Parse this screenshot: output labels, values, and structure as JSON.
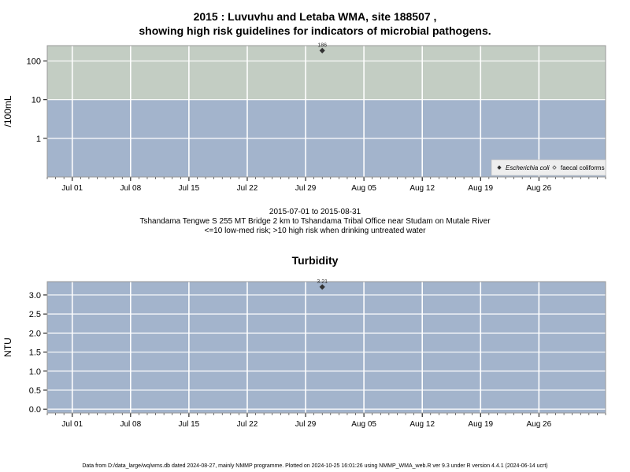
{
  "chart_data": [
    {
      "type": "scatter",
      "title": "2015 : Luvuvhu and Letaba WMA, site 188507 ,",
      "subtitle": "showing high risk guidelines for indicators of microbial pathogens.",
      "ylabel": "/100mL",
      "yscale": "log",
      "yticks": [
        "1",
        "10",
        "100"
      ],
      "xlim": [
        "2015-06-28",
        "2015-09-03"
      ],
      "xticks": [
        "Jul 01",
        "Jul 08",
        "Jul 15",
        "Jul 22",
        "Jul 29",
        "Aug 05",
        "Aug 12",
        "Aug 19",
        "Aug 26"
      ],
      "ylim": [
        0.1,
        250
      ],
      "bands": [
        {
          "from": 0.1,
          "to": 10,
          "color": "#a3b4cc"
        },
        {
          "from": 10,
          "to": 250,
          "color": "#c3cdc3"
        }
      ],
      "series": [
        {
          "name": "Escherichia coli",
          "marker": "filled-diamond",
          "points": [
            {
              "x": "2015-07-31",
              "y": 186,
              "label": "186"
            }
          ]
        },
        {
          "name": "faecal coliforms",
          "marker": "open-diamond",
          "points": []
        }
      ],
      "legend_position": "bottom-right",
      "grid": true
    },
    {
      "type": "scatter",
      "title": "Turbidity",
      "ylabel": "NTU",
      "yticks": [
        "0.0",
        "0.5",
        "1.0",
        "1.5",
        "2.0",
        "2.5",
        "3.0"
      ],
      "xlim": [
        "2015-06-28",
        "2015-09-03"
      ],
      "ylim": [
        -0.1,
        3.35
      ],
      "xticks": [
        "Jul 01",
        "Jul 08",
        "Jul 15",
        "Jul 22",
        "Jul 29",
        "Aug 05",
        "Aug 12",
        "Aug 19",
        "Aug 26"
      ],
      "bands": [
        {
          "from": -0.1,
          "to": 3.35,
          "color": "#a3b4cc"
        }
      ],
      "series": [
        {
          "name": "",
          "marker": "filled-diamond",
          "points": [
            {
              "x": "2015-07-31",
              "y": 3.21,
              "label": "3.21"
            }
          ]
        }
      ],
      "grid": true
    }
  ],
  "mid_caption": {
    "line1": "2015-07-01 to 2015-08-31",
    "line2": "Tshandama Tengwe S 255 MT Bridge 2 km to Tshandama Tribal Office near Studam on Mutale River",
    "line3": "<=10 low-med risk; >10 high risk when drinking untreated water"
  },
  "footer": "Data from D:/data_large/wq/wms.db dated 2024-08-27, mainly NMMP programme. Plotted on 2024-10-25 16:01:26 using NMMP_WMA_web.R ver 9.3 under R version 4.4.1 (2024-06-14 ucrt)"
}
